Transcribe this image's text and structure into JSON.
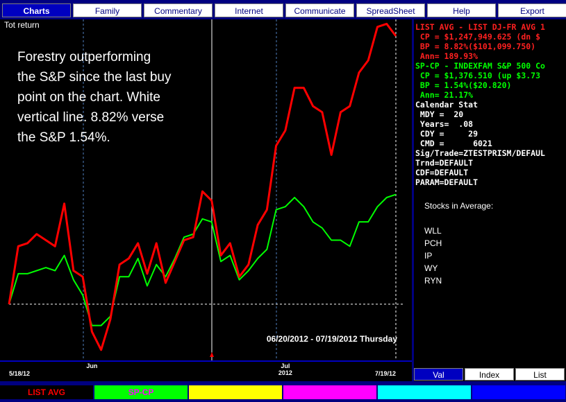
{
  "menu": {
    "tabs": [
      "Charts",
      "Family",
      "Commentary",
      "Internet",
      "Communicate",
      "SpreadSheet",
      "Help",
      "Export"
    ],
    "selected": 0
  },
  "chart_data": {
    "type": "line",
    "y_label": "Tot return",
    "annotation": [
      "Forestry outperforming",
      "the S&P since the last buy",
      "point on the chart. White",
      "vertical line.  8.82% verse",
      "the S&P 1.54%."
    ],
    "date_range": "06/20/2012 - 07/19/2012 Thursday",
    "categories": [
      "5/18/12",
      null,
      null,
      null,
      null,
      null,
      null,
      null,
      null,
      "Jun",
      null,
      null,
      null,
      null,
      null,
      null,
      null,
      null,
      null,
      null,
      null,
      null,
      null,
      null,
      null,
      null,
      null,
      null,
      null,
      null,
      "Jul",
      null,
      null,
      null,
      null,
      null,
      null,
      null,
      null,
      null,
      null,
      null,
      "7/19/12"
    ],
    "x_year": "2012",
    "series": [
      {
        "name": "LIST AVG",
        "color": "#ff0000",
        "label_color": "#ff0000",
        "values": [
          0,
          1.9,
          2.0,
          2.3,
          2.1,
          1.9,
          3.3,
          1.1,
          0.9,
          -0.9,
          -1.5,
          -0.5,
          1.3,
          1.5,
          2.0,
          1.0,
          2.0,
          0.7,
          1.4,
          2.1,
          2.2,
          3.7,
          3.4,
          1.6,
          2.0,
          0.9,
          1.3,
          2.6,
          3.1,
          5.2,
          5.7,
          7.1,
          7.1,
          6.5,
          6.3,
          4.9,
          6.3,
          6.5,
          7.6,
          8.0,
          9.1,
          9.2,
          8.8
        ]
      },
      {
        "name": "SP-CP",
        "color": "#00ff00",
        "label_color": "#ff00ff",
        "values": [
          0,
          1.0,
          1.0,
          1.1,
          1.2,
          1.1,
          1.6,
          0.8,
          0.3,
          -0.7,
          -0.7,
          -0.4,
          0.9,
          0.9,
          1.5,
          0.6,
          1.3,
          0.9,
          1.5,
          2.2,
          2.3,
          2.8,
          2.7,
          1.4,
          1.6,
          0.8,
          1.1,
          1.5,
          1.8,
          3.1,
          3.2,
          3.5,
          3.2,
          2.7,
          2.5,
          2.1,
          2.1,
          1.9,
          2.7,
          2.7,
          3.2,
          3.5,
          3.6
        ]
      }
    ],
    "ylim": [
      -1.8,
      9.3
    ],
    "reference_line": 0
  },
  "info_panel": {
    "lines": [
      {
        "text": "LIST AVG - LIST DJ-FR AVG 1",
        "color": "#ff2020"
      },
      {
        "text": " CP = $1,247,949.625 (dn $",
        "color": "#ff2020"
      },
      {
        "text": " BP = 8.82%($101,099.750)",
        "color": "#ff2020"
      },
      {
        "text": " Ann= 189.93%",
        "color": "#ff2020"
      },
      {
        "text": "SP-CP - INDEXFAM S&P 500 Co",
        "color": "#00ff00"
      },
      {
        "text": " CP = $1,376.510 (up $3.73",
        "color": "#00ff00"
      },
      {
        "text": " BP = 1.54%($20.820)",
        "color": "#00ff00"
      },
      {
        "text": " Ann= 21.17%",
        "color": "#00ff00"
      },
      {
        "text": "Calendar Stat",
        "color": "#ffffff"
      },
      {
        "text": " MDY =  20",
        "color": "#ffffff"
      },
      {
        "text": " Years=  .08",
        "color": "#ffffff"
      },
      {
        "text": " CDY =     29",
        "color": "#ffffff"
      },
      {
        "text": " CMD =      6021",
        "color": "#ffffff"
      },
      {
        "text": "Sig/Trade=ZTESTPRISM/DEFAUL",
        "color": "#ffffff"
      },
      {
        "text": "Trnd=DEFAULT",
        "color": "#ffffff"
      },
      {
        "text": "CDF=DEFAULT",
        "color": "#ffffff"
      },
      {
        "text": "PARAM=DEFAULT",
        "color": "#ffffff"
      }
    ],
    "stocks_title": "Stocks in Average:",
    "stocks": [
      "WLL",
      "PCH",
      "IP",
      "WY",
      "RYN"
    ],
    "tabs": [
      "Val",
      "Index",
      "List"
    ],
    "selected": 0
  }
}
